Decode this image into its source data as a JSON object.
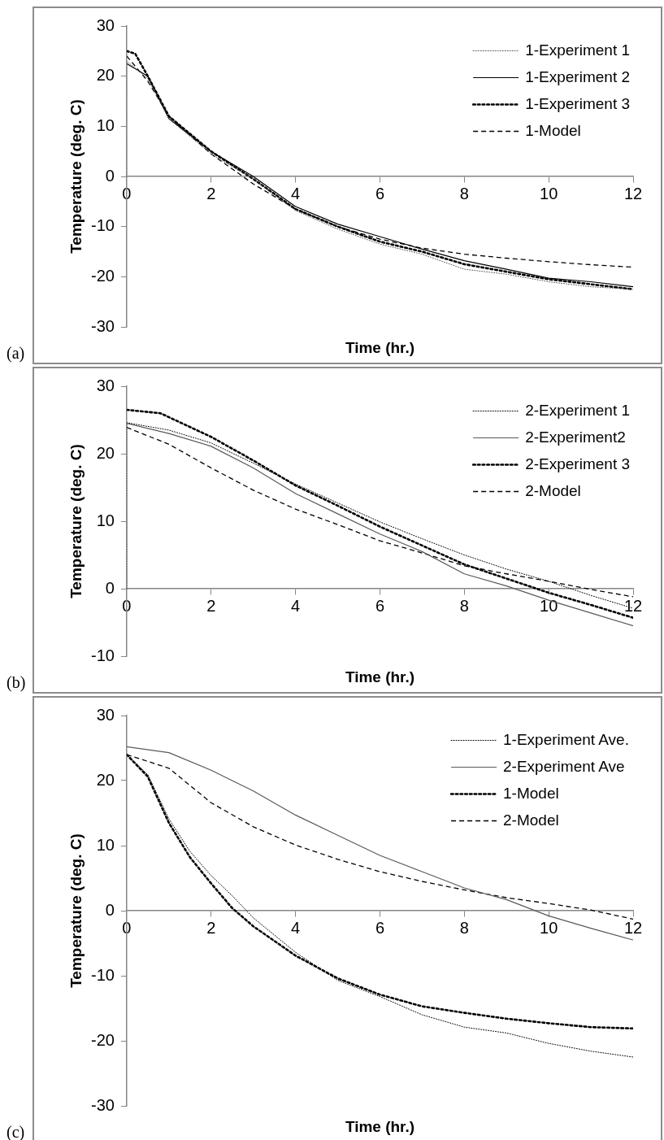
{
  "chart_data": [
    {
      "type": "line",
      "xlabel": "Time (hr.)",
      "ylabel": "Temperature (deg. C)",
      "xlim": [
        0,
        12
      ],
      "xticks": [
        0,
        2,
        4,
        6,
        8,
        10,
        12
      ],
      "ylim": [
        -30,
        30
      ],
      "yticks": [
        -30,
        -20,
        -10,
        0,
        10,
        20,
        30
      ],
      "grid": false,
      "legend": "top right",
      "marker": "none",
      "annotations": [
        "(a)"
      ],
      "series": [
        {
          "name": "1-Experiment 1",
          "color": "#595959",
          "line_style": "dotted",
          "x": [
            0,
            0,
            0.5,
            1,
            2,
            3,
            4,
            5,
            6,
            7,
            8,
            9,
            10,
            11,
            12
          ],
          "values": [
            0,
            23,
            19.5,
            11.5,
            4.5,
            -0.5,
            -6.8,
            -10.5,
            -13.5,
            -15.5,
            -18.5,
            -19.5,
            -21,
            -22,
            -22.5
          ]
        },
        {
          "name": "1-Experiment 2",
          "color": "#000000",
          "line_style": "solid",
          "x": [
            0,
            0.5,
            1,
            2,
            3,
            4,
            5,
            6,
            7,
            8,
            9,
            10,
            11,
            12
          ],
          "values": [
            22.5,
            20,
            11.5,
            5,
            0,
            -6,
            -9.5,
            -12,
            -14.5,
            -16.8,
            -18.5,
            -20.3,
            -21,
            -22
          ]
        },
        {
          "name": "1-Experiment 3",
          "color": "#000000",
          "line_style": "dotted",
          "x": [
            0,
            0.2,
            0.5,
            1,
            2,
            3,
            4,
            5,
            6,
            7,
            8,
            9,
            10,
            11,
            12
          ],
          "values": [
            25,
            24.5,
            20,
            12,
            5,
            -0.5,
            -6.5,
            -10,
            -13,
            -15,
            -17.5,
            -19,
            -20.5,
            -21.5,
            -22.5
          ]
        },
        {
          "name": "1-Model",
          "color": "#000000",
          "line_style": "dashed",
          "x": [
            0,
            0.5,
            1,
            2,
            2.5,
            3,
            4,
            5,
            6,
            7,
            8,
            9,
            10,
            11,
            12
          ],
          "values": [
            24,
            19,
            12,
            4.5,
            1.5,
            -1.5,
            -6.5,
            -10,
            -12.5,
            -14.3,
            -15.5,
            -16.3,
            -17,
            -17.6,
            -18.1
          ]
        }
      ]
    },
    {
      "type": "line",
      "xlabel": "Time (hr.)",
      "ylabel": "Temperature (deg. C)",
      "xlim": [
        0,
        12
      ],
      "xticks": [
        0,
        2,
        4,
        6,
        8,
        10,
        12
      ],
      "ylim": [
        -10,
        30
      ],
      "yticks": [
        -10,
        0,
        10,
        20,
        30
      ],
      "grid": false,
      "legend": "top right",
      "marker": "none",
      "annotations": [
        "(b)"
      ],
      "series": [
        {
          "name": "2-Experiment 1",
          "color": "#000000",
          "line_style": "dotted",
          "x": [
            0,
            0,
            1,
            2,
            3,
            4,
            5,
            6,
            7,
            8,
            9,
            10,
            11,
            12
          ],
          "values": [
            0,
            24.6,
            23.5,
            21.6,
            18.6,
            15.5,
            12.7,
            9.9,
            7.4,
            5,
            2.9,
            1.1,
            -1,
            -2.9
          ]
        },
        {
          "name": "2-Experiment2",
          "color": "#595959",
          "line_style": "solid",
          "x": [
            0,
            1,
            2,
            3,
            4,
            5,
            6,
            7,
            8,
            9,
            10,
            11,
            12
          ],
          "values": [
            24.5,
            23,
            21.1,
            17.9,
            14.1,
            11.1,
            8.1,
            5.5,
            2.2,
            0.4,
            -1.7,
            -3.6,
            -5.5
          ]
        },
        {
          "name": "2-Experiment 3",
          "color": "#000000",
          "line_style": "dotted",
          "x": [
            0,
            0.8,
            2,
            3,
            4,
            5,
            6,
            7,
            8,
            9,
            10,
            11,
            12
          ],
          "values": [
            26.5,
            26,
            22.5,
            19,
            15.3,
            12.3,
            9.2,
            6.4,
            3.6,
            1.5,
            -0.6,
            -2.4,
            -4.3
          ]
        },
        {
          "name": "2-Model",
          "color": "#000000",
          "line_style": "dashed",
          "x": [
            0,
            1,
            2,
            3,
            4,
            5,
            6,
            7,
            8,
            9,
            10,
            11,
            12
          ],
          "values": [
            23.9,
            21.4,
            17.9,
            14.6,
            11.8,
            9.5,
            7.1,
            5.3,
            3.4,
            2.2,
            1.1,
            -0.1,
            -1.2
          ]
        }
      ]
    },
    {
      "type": "line",
      "xlabel": "Time (hr.)",
      "ylabel": "Temperature (deg. C)",
      "xlim": [
        0,
        12
      ],
      "xticks": [
        0,
        2,
        4,
        6,
        8,
        10,
        12
      ],
      "ylim": [
        -30,
        30
      ],
      "yticks": [
        -30,
        -20,
        -10,
        0,
        10,
        20,
        30
      ],
      "grid": false,
      "legend": "top right",
      "marker": "none",
      "annotations": [
        "(c)"
      ],
      "series": [
        {
          "name": "1-Experiment Ave.",
          "color": "#000000",
          "line_style": "dotted",
          "x": [
            0,
            0.5,
            1,
            1.5,
            2,
            2.5,
            3,
            4,
            5,
            6,
            7,
            8,
            9,
            10,
            11,
            12
          ],
          "values": [
            24,
            20.9,
            14.1,
            9.1,
            5.4,
            2.3,
            -1.1,
            -6.4,
            -10.7,
            -13.2,
            -16,
            -17.9,
            -18.8,
            -20.4,
            -21.6,
            -22.5
          ]
        },
        {
          "name": "2-Experiment Ave",
          "color": "#595959",
          "line_style": "solid",
          "x": [
            0,
            1,
            2,
            3,
            4,
            5,
            6,
            7,
            8,
            9,
            10,
            11,
            12
          ],
          "values": [
            25.2,
            24.3,
            21.6,
            18.4,
            14.7,
            11.6,
            8.5,
            6,
            3.5,
            1.7,
            -0.8,
            -2.7,
            -4.5
          ]
        },
        {
          "name": "1-Model",
          "color": "#000000",
          "line_style": "dotted",
          "x": [
            0,
            0.5,
            1,
            1.5,
            2,
            2.5,
            3,
            4,
            5,
            6,
            7,
            8,
            9,
            10,
            11,
            12
          ],
          "values": [
            24,
            20.6,
            13.5,
            8.2,
            4.2,
            0.4,
            -2.4,
            -6.9,
            -10.4,
            -12.9,
            -14.7,
            -15.7,
            -16.6,
            -17.3,
            -17.9,
            -18.1
          ]
        },
        {
          "name": "2-Model",
          "color": "#000000",
          "line_style": "dashed",
          "x": [
            0,
            1,
            2,
            3,
            4,
            5,
            6,
            7,
            8,
            9,
            10,
            11,
            12
          ],
          "values": [
            24,
            21.9,
            16.6,
            12.9,
            10.1,
            7.9,
            6,
            4.5,
            3.2,
            2,
            1.1,
            0.1,
            -1.3
          ]
        }
      ]
    }
  ]
}
